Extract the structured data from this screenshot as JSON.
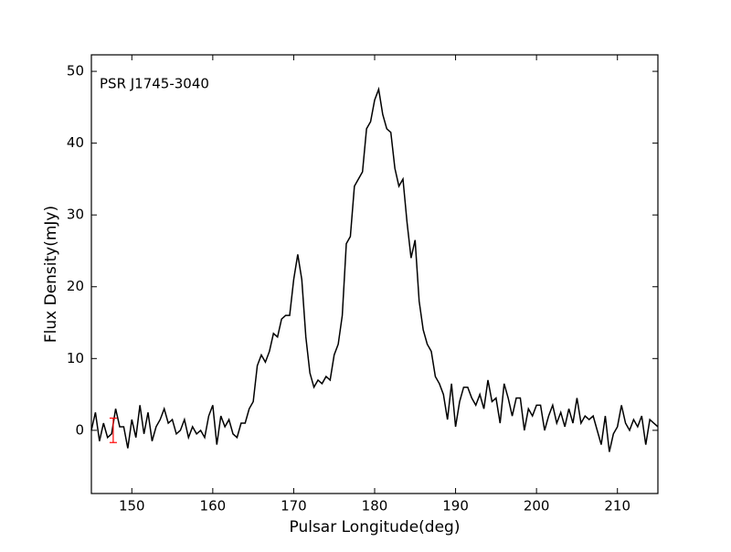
{
  "chart_data": {
    "type": "line",
    "xlabel": "Pulsar Longitude(deg)",
    "ylabel": "Flux Density(mJy)",
    "annotation": "PSR J1745-3040",
    "xlim": [
      145,
      215
    ],
    "ylim": [
      -8.8,
      52.3
    ],
    "xticks": [
      150,
      160,
      170,
      180,
      190,
      200,
      210
    ],
    "yticks": [
      0,
      10,
      20,
      30,
      40,
      50
    ],
    "series": [
      {
        "color": "#000000",
        "x": [
          145,
          145.5,
          146,
          146.5,
          147,
          147.5,
          148,
          148.5,
          149,
          149.5,
          150,
          150.5,
          151,
          151.5,
          152,
          152.5,
          153,
          153.5,
          154,
          154.5,
          155,
          155.5,
          156,
          156.5,
          157,
          157.5,
          158,
          158.5,
          159,
          159.5,
          160,
          160.5,
          161,
          161.5,
          162,
          162.5,
          163,
          163.5,
          164,
          164.5,
          165,
          165.5,
          166,
          166.5,
          167,
          167.5,
          168,
          168.5,
          169,
          169.5,
          170,
          170.5,
          171,
          171.5,
          172,
          172.5,
          173,
          173.5,
          174,
          174.5,
          175,
          175.5,
          176,
          176.5,
          177,
          177.5,
          178,
          178.5,
          179,
          179.5,
          180,
          180.5,
          181,
          181.5,
          182,
          182.5,
          183,
          183.5,
          184,
          184.5,
          185,
          185.5,
          186,
          186.5,
          187,
          187.5,
          188,
          188.5,
          189,
          189.5,
          190,
          190.5,
          191,
          191.5,
          192,
          192.5,
          193,
          193.5,
          194,
          194.5,
          195,
          195.5,
          196,
          196.5,
          197,
          197.5,
          198,
          198.5,
          199,
          199.5,
          200,
          200.5,
          201,
          201.5,
          202,
          202.5,
          203,
          203.5,
          204,
          204.5,
          205,
          205.5,
          206,
          206.5,
          207,
          207.5,
          208,
          208.5,
          209,
          209.5,
          210,
          210.5,
          211,
          211.5,
          212,
          212.5,
          213,
          213.5,
          214,
          214.5,
          215
        ],
        "values": [
          0,
          2.5,
          -1.5,
          1,
          -1,
          -0.5,
          3,
          0.5,
          0.5,
          -2.5,
          1.5,
          -1,
          3.5,
          -0.5,
          2.5,
          -1.5,
          0.5,
          1.5,
          3,
          1,
          1.5,
          -0.5,
          0,
          1.5,
          -1,
          0.5,
          -0.5,
          0,
          -1,
          2,
          3.5,
          -2,
          2,
          0.5,
          1.5,
          -0.5,
          -1,
          1,
          1,
          3,
          4,
          9,
          10.5,
          9.5,
          11,
          13.5,
          13,
          15.5,
          16,
          16,
          21,
          24.5,
          21,
          13,
          8,
          6,
          7,
          6.5,
          7.5,
          7,
          10.5,
          12,
          16,
          26,
          27,
          34,
          35,
          36,
          42,
          43,
          46,
          47.5,
          44,
          42,
          41.5,
          36.5,
          34,
          35,
          29,
          24,
          26.5,
          18,
          14,
          12,
          11,
          7.5,
          6.5,
          5,
          1.5,
          6.5,
          0.5,
          4,
          6,
          6,
          4.5,
          3.5,
          5,
          3,
          7,
          4,
          4.5,
          1,
          6.5,
          4.5,
          2,
          4.5,
          4.5,
          0,
          3,
          2,
          3.5,
          3.5,
          0,
          2,
          3.5,
          1,
          2.5,
          0.5,
          3,
          1,
          4.5,
          1,
          2,
          1.5,
          2,
          0,
          -2,
          2,
          -3,
          -0.5,
          0.5,
          3.5,
          1,
          0,
          1.5,
          0.5,
          2,
          -2,
          1.5,
          1,
          0.5
        ]
      }
    ],
    "errorbar": {
      "x": 147.7,
      "y": 0,
      "yerr": 1.7,
      "color": "#ff0000"
    }
  }
}
